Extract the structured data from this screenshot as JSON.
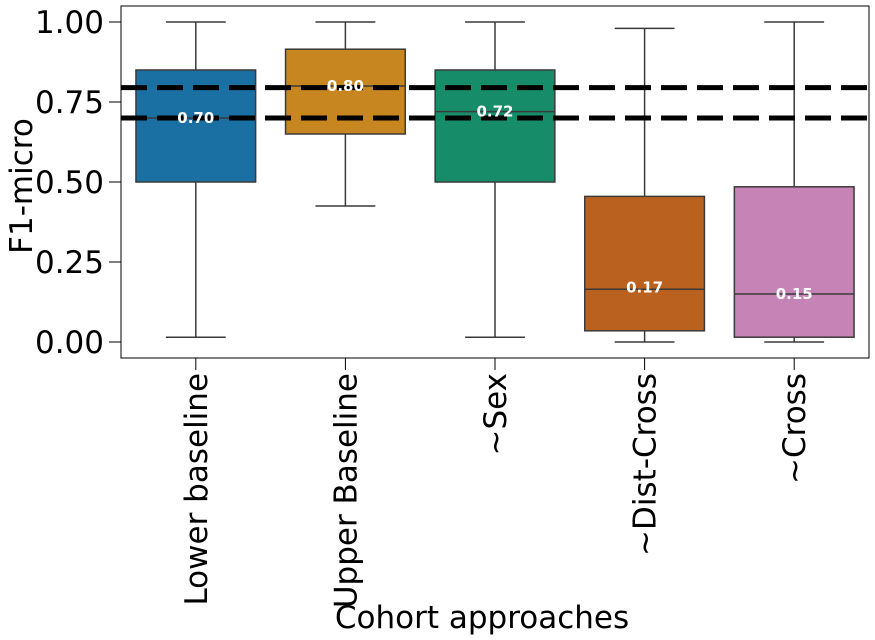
{
  "chart_data": {
    "type": "box",
    "xlabel": "Cohort approaches",
    "ylabel": "F1-micro",
    "ylim": [
      -0.05,
      1.05
    ],
    "yticks": [
      0.0,
      0.25,
      0.5,
      0.75,
      1.0
    ],
    "ytick_labels": [
      "0.00",
      "0.25",
      "0.50",
      "0.75",
      "1.00"
    ],
    "grid": false,
    "reference_lines": [
      0.7,
      0.795
    ],
    "categories": [
      "Lower baseline",
      "Upper Baseline",
      "~Sex",
      "~Dist-Cross",
      "~Cross"
    ],
    "boxes": [
      {
        "whisker_low": 0.015,
        "q1": 0.5,
        "median": 0.7,
        "q3": 0.85,
        "whisker_high": 1.0,
        "mean": 0.7,
        "mean_label": "0.70",
        "color": "#1a6fa3"
      },
      {
        "whisker_low": 0.425,
        "q1": 0.65,
        "median": 0.8,
        "q3": 0.915,
        "whisker_high": 1.0,
        "mean": 0.8,
        "mean_label": "0.80",
        "color": "#c7861f"
      },
      {
        "whisker_low": 0.015,
        "q1": 0.5,
        "median": 0.72,
        "q3": 0.85,
        "whisker_high": 1.0,
        "mean": 0.72,
        "mean_label": "0.72",
        "color": "#178c69"
      },
      {
        "whisker_low": 0.0,
        "q1": 0.035,
        "median": 0.165,
        "q3": 0.455,
        "whisker_high": 0.98,
        "mean": 0.17,
        "mean_label": "0.17",
        "color": "#bb611f"
      },
      {
        "whisker_low": 0.0,
        "q1": 0.015,
        "median": 0.15,
        "q3": 0.485,
        "whisker_high": 1.0,
        "mean": 0.15,
        "mean_label": "0.15",
        "color": "#c583b6"
      }
    ]
  }
}
